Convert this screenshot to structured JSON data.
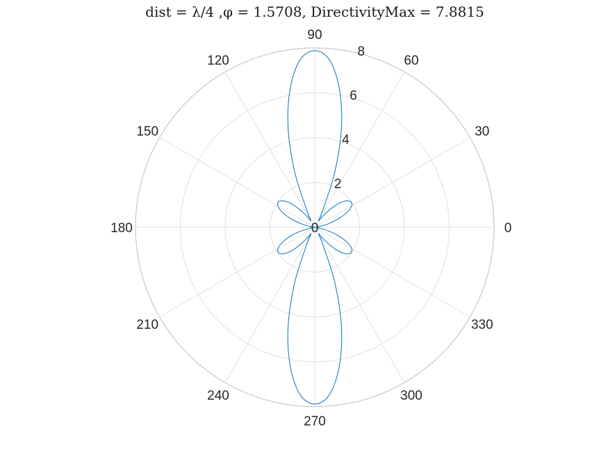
{
  "chart_data": {
    "type": "line",
    "projection": "polar",
    "title": "dist = λ/4 ,φ = 1.5708, DirectivityMax = 7.8815",
    "directivity_max": 7.8815,
    "theta_ticks_deg": [
      0,
      30,
      60,
      90,
      120,
      150,
      180,
      210,
      240,
      270,
      300,
      330
    ],
    "theta_tick_labels": [
      "0",
      "30",
      "60",
      "90",
      "120",
      "150",
      "180",
      "210",
      "240",
      "270",
      "300",
      "330"
    ],
    "r_ticks": [
      0,
      2,
      4,
      6,
      8
    ],
    "r_tick_labels": [
      "0",
      "2",
      "4",
      "6",
      "8"
    ],
    "rlim": [
      0,
      8
    ],
    "grid": true,
    "series": [
      {
        "color": "#0072BD",
        "points_theta_deg": [
          0,
          5,
          10,
          15,
          20,
          25,
          30,
          35,
          40,
          45,
          50,
          55,
          60,
          65,
          70,
          75,
          80,
          85,
          90,
          95,
          100,
          105,
          110,
          115,
          120,
          125,
          130,
          135,
          140,
          145,
          150,
          155,
          160,
          165,
          170,
          175,
          180,
          185,
          190,
          195,
          200,
          205,
          210,
          215,
          220,
          225,
          230,
          235,
          240,
          245,
          250,
          255,
          260,
          265,
          270,
          275,
          280,
          285,
          290,
          295,
          300,
          305,
          310,
          315,
          320,
          325,
          330,
          335,
          340,
          345,
          350,
          355
        ],
        "points_r": [
          0,
          0.05,
          0.2,
          0.65,
          1.15,
          1.6,
          1.9,
          1.97,
          1.84,
          1.5,
          1.0,
          0.55,
          0.35,
          0.85,
          2.6,
          4.6,
          6.3,
          7.5,
          7.88,
          7.5,
          6.3,
          4.6,
          2.6,
          0.85,
          0.35,
          0.55,
          1.0,
          1.5,
          1.84,
          1.97,
          1.9,
          1.6,
          1.15,
          0.65,
          0.2,
          0.05,
          0,
          0.05,
          0.2,
          0.65,
          1.15,
          1.6,
          1.9,
          1.97,
          1.84,
          1.5,
          1.0,
          0.55,
          0.35,
          0.85,
          2.6,
          4.6,
          6.3,
          7.5,
          7.88,
          7.5,
          6.3,
          4.6,
          2.6,
          0.85,
          0.35,
          0.55,
          1.0,
          1.5,
          1.84,
          1.97,
          1.9,
          1.6,
          1.15,
          0.65,
          0.2,
          0.05
        ]
      }
    ]
  }
}
